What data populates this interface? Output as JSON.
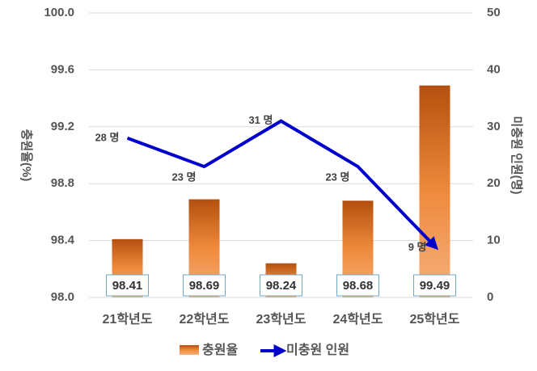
{
  "chart_data": {
    "type": "bar",
    "categories": [
      "21학년도",
      "22학년도",
      "23학년도",
      "24학년도",
      "25학년도"
    ],
    "series": [
      {
        "name": "충원율",
        "type": "bar",
        "axis": "y",
        "color": "#e07a2e",
        "values": [
          98.41,
          98.69,
          98.24,
          98.68,
          99.49
        ]
      },
      {
        "name": "미충원 인원",
        "type": "line",
        "axis": "y2",
        "color": "#0000cc",
        "values": [
          28,
          23,
          31,
          23,
          9
        ],
        "value_labels": [
          "28 명",
          "23 명",
          "31 명",
          "23 명",
          "9 명"
        ]
      }
    ],
    "ylabel": "충원율(%)",
    "y2label": "미충원 인원(명)",
    "ylim": [
      98.0,
      100.0
    ],
    "yticks": [
      {
        "value": 98.0,
        "label": "98.0"
      },
      {
        "value": 98.4,
        "label": "98.4"
      },
      {
        "value": 98.8,
        "label": "98.8"
      },
      {
        "value": 99.2,
        "label": "99.2"
      },
      {
        "value": 99.6,
        "label": "99.6"
      },
      {
        "value": 100.0,
        "label": "100.0"
      }
    ],
    "y2lim": [
      0,
      50
    ],
    "y2ticks": [
      0,
      10,
      20,
      30,
      40,
      50
    ],
    "grid": true,
    "legend": "bottom"
  }
}
